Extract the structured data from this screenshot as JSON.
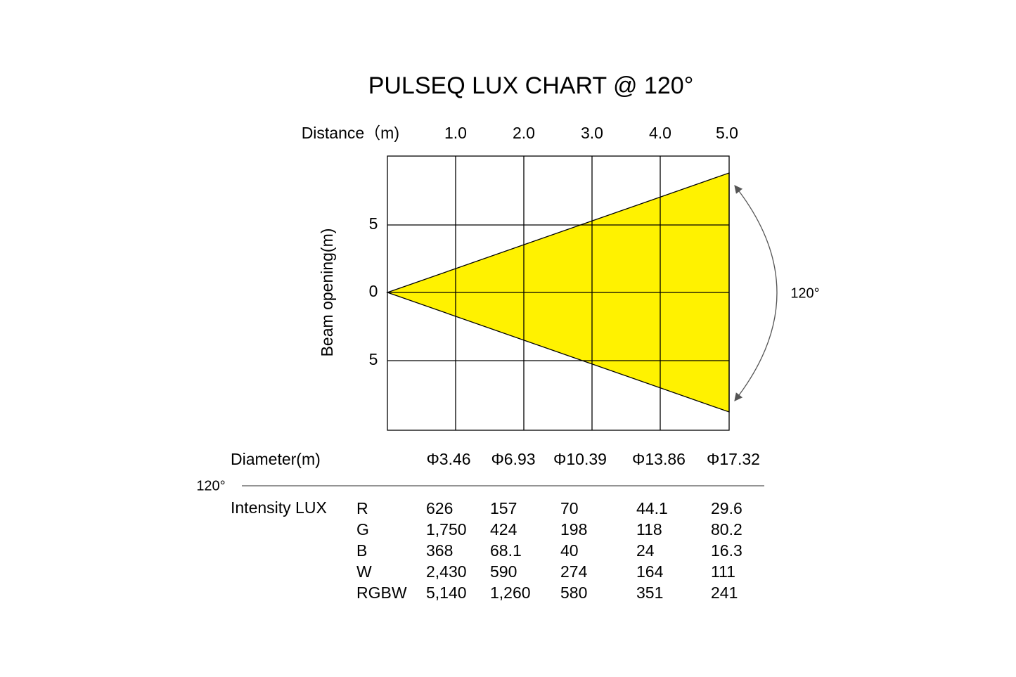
{
  "title": "PULSEQ LUX CHART @ 120°",
  "distance": {
    "label": "Distance（m)",
    "ticks": [
      "1.0",
      "2.0",
      "3.0",
      "4.0",
      "5.0"
    ]
  },
  "beam": {
    "label": "Beam opening(m)",
    "ticks": [
      "5",
      "0",
      "5"
    ],
    "angle": "120°"
  },
  "diameter": {
    "label": "Diameter(m)",
    "values": [
      "Φ3.46",
      "Φ6.93",
      "Φ10.39",
      "Φ13.86",
      "Φ17.32"
    ]
  },
  "intensity": {
    "angle": "120°",
    "label": "Intensity LUX",
    "rows": [
      {
        "channel": "R",
        "values": [
          "626",
          "157",
          "70",
          "44.1",
          "29.6"
        ]
      },
      {
        "channel": "G",
        "values": [
          "1,750",
          "424",
          "198",
          "118",
          "80.2"
        ]
      },
      {
        "channel": "B",
        "values": [
          "368",
          "68.1",
          "40",
          "24",
          "16.3"
        ]
      },
      {
        "channel": "W",
        "values": [
          "2,430",
          "590",
          "274",
          "164",
          "111"
        ]
      },
      {
        "channel": "RGBW",
        "values": [
          "5,140",
          "1,260",
          "580",
          "351",
          "241"
        ]
      }
    ]
  }
}
